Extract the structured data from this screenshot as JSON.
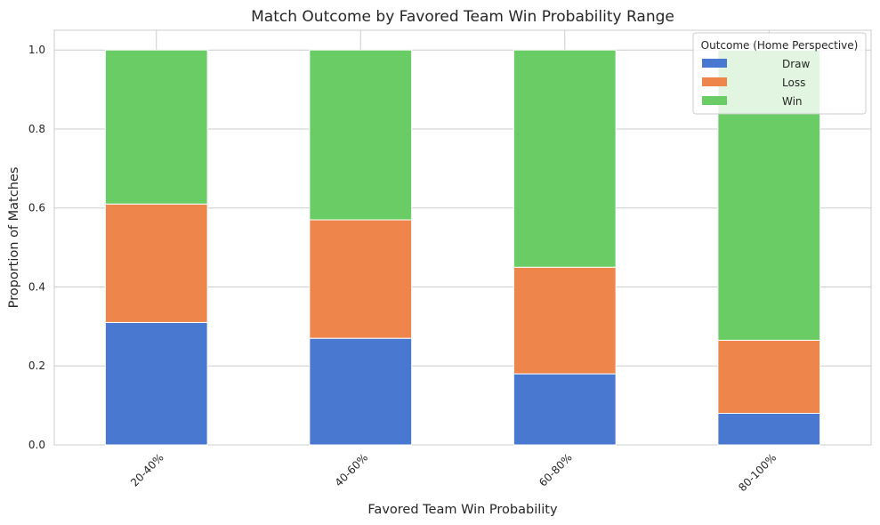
{
  "chart_data": {
    "type": "bar",
    "stacked": true,
    "title": "Match Outcome by Favored Team Win Probability Range",
    "xlabel": "Favored Team Win Probability",
    "ylabel": "Proportion of Matches",
    "categories": [
      "20-40%",
      "40-60%",
      "60-80%",
      "80-100%"
    ],
    "ylim": [
      0,
      1.05
    ],
    "yticks": [
      0.0,
      0.2,
      0.4,
      0.6,
      0.8,
      1.0
    ],
    "ytick_labels": [
      "0.0",
      "0.2",
      "0.4",
      "0.6",
      "0.8",
      "1.0"
    ],
    "grid": true,
    "legend": {
      "title": "Outcome (Home Perspective)",
      "placement": "top-right"
    },
    "series": [
      {
        "name": "Draw",
        "color": "#4878d0",
        "values": [
          0.31,
          0.27,
          0.18,
          0.08
        ]
      },
      {
        "name": "Loss",
        "color": "#ee854a",
        "values": [
          0.3,
          0.3,
          0.27,
          0.185
        ]
      },
      {
        "name": "Win",
        "color": "#6acc64",
        "values": [
          0.39,
          0.43,
          0.55,
          0.735
        ]
      }
    ]
  }
}
